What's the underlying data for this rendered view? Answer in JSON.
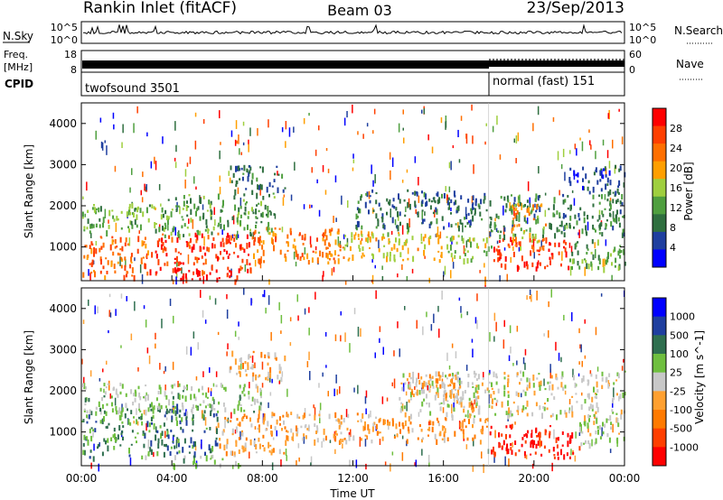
{
  "header": {
    "station": "Rankin Inlet (fitACF)",
    "beam": "Beam 03",
    "date": "23/Sep/2013"
  },
  "strip": {
    "nsky_label": "N.Sky",
    "nsearch_label": "N.Search",
    "nsky_ticks": [
      "10^5",
      "10^0"
    ],
    "nsearch_ticks": [
      "10^5",
      "10^0"
    ],
    "freq_label": "Freq.",
    "freq_unit": "[MHz]",
    "freq_ticks": [
      "18",
      "8"
    ],
    "nave_label": "Nave",
    "nave_ticks": [
      "60",
      "0"
    ],
    "cpid_label": "CPID",
    "cpid_segments": [
      {
        "name": "twofsound 3501",
        "start_hour": 0,
        "end_hour": 18
      },
      {
        "name": "normal (fast) 151",
        "start_hour": 18,
        "end_hour": 24
      }
    ]
  },
  "colors": {
    "power_scale": [
      "#0000ff",
      "#1f3f9f",
      "#2f6f3f",
      "#4f9f3f",
      "#9fcf3f",
      "#ff9f00",
      "#ff6f00",
      "#ff3f00",
      "#ff0000"
    ],
    "velocity_scale": [
      "#0000ff",
      "#1f3f9f",
      "#2f6f4f",
      "#6fbf3f",
      "#c8c8c8",
      "#ffa030",
      "#ff7a00",
      "#ff3f00",
      "#ff0000"
    ]
  },
  "chart_data": [
    {
      "type": "heatmap",
      "panel": "power",
      "xlabel": "",
      "ylabel": "Slant Range [km]",
      "xlim": [
        0,
        24
      ],
      "ylim": [
        180,
        4500
      ],
      "yticks": [
        "1000",
        "2000",
        "3000",
        "4000"
      ],
      "colorbar_label": "Power [dB]",
      "colorbar_ticks": [
        "28",
        "24",
        "20",
        "16",
        "12",
        "8",
        "4"
      ],
      "colorbar_range": [
        0,
        32
      ],
      "regions": [
        {
          "x0": 0.0,
          "x1": 3.0,
          "y0": 300,
          "y1": 1300,
          "level": 24
        },
        {
          "x0": 3.0,
          "x1": 7.5,
          "y0": 400,
          "y1": 1350,
          "level": 28
        },
        {
          "x0": 7.5,
          "x1": 11.5,
          "y0": 600,
          "y1": 1500,
          "level": 22
        },
        {
          "x0": 11.5,
          "x1": 16.0,
          "y0": 700,
          "y1": 1400,
          "level": 18
        },
        {
          "x0": 16.0,
          "x1": 18.2,
          "y0": 700,
          "y1": 1300,
          "level": 16
        },
        {
          "x0": 18.2,
          "x1": 21.5,
          "y0": 500,
          "y1": 1250,
          "level": 28
        },
        {
          "x0": 21.5,
          "x1": 24.0,
          "y0": 500,
          "y1": 1200,
          "level": 12
        },
        {
          "x0": 4.0,
          "x1": 7.0,
          "y0": 200,
          "y1": 500,
          "level": 30
        },
        {
          "x0": 0.0,
          "x1": 3.5,
          "y0": 1400,
          "y1": 2100,
          "level": 14
        },
        {
          "x0": 3.5,
          "x1": 8.5,
          "y0": 1300,
          "y1": 2300,
          "level": 12
        },
        {
          "x0": 12.0,
          "x1": 18.0,
          "y0": 1500,
          "y1": 2400,
          "level": 8
        },
        {
          "x0": 18.0,
          "x1": 24.0,
          "y0": 1300,
          "y1": 2300,
          "level": 10
        },
        {
          "x0": 19.0,
          "x1": 20.5,
          "y0": 1000,
          "y1": 2100,
          "level": 20
        },
        {
          "x0": 6.5,
          "x1": 9.0,
          "y0": 2300,
          "y1": 3000,
          "level": 8
        },
        {
          "x0": 21.5,
          "x1": 24.0,
          "y0": 2300,
          "y1": 3000,
          "level": 6
        }
      ]
    },
    {
      "type": "heatmap",
      "panel": "velocity",
      "xlabel": "Time UT",
      "ylabel": "Slant Range [km]",
      "xlim": [
        0,
        24
      ],
      "ylim": [
        180,
        4500
      ],
      "xticks": [
        "00:00",
        "04:00",
        "08:00",
        "12:00",
        "16:00",
        "20:00",
        "00:00"
      ],
      "yticks": [
        "1000",
        "2000",
        "3000",
        "4000"
      ],
      "colorbar_label": "Velocity [m s^-1]",
      "colorbar_ticks": [
        "1000",
        "500",
        "100",
        "25",
        "-25",
        "-100",
        "-500",
        "-1000"
      ],
      "colorbar_range": [
        -1200,
        1200
      ],
      "regions": [
        {
          "x0": 0.0,
          "x1": 3.0,
          "y0": 400,
          "y1": 1600,
          "level": 400
        },
        {
          "x0": 3.0,
          "x1": 6.0,
          "y0": 500,
          "y1": 1700,
          "level": 600
        },
        {
          "x0": 6.0,
          "x1": 9.0,
          "y0": 500,
          "y1": 1500,
          "level": -300
        },
        {
          "x0": 9.0,
          "x1": 13.0,
          "y0": 800,
          "y1": 1500,
          "level": -200
        },
        {
          "x0": 13.0,
          "x1": 18.0,
          "y0": 800,
          "y1": 1400,
          "level": -400
        },
        {
          "x0": 18.0,
          "x1": 22.0,
          "y0": 400,
          "y1": 1200,
          "level": -1000
        },
        {
          "x0": 22.0,
          "x1": 24.0,
          "y0": 700,
          "y1": 1400,
          "level": 100
        },
        {
          "x0": 4.0,
          "x1": 7.0,
          "y0": 200,
          "y1": 450,
          "level": 200
        },
        {
          "x0": 14.0,
          "x1": 24.0,
          "y0": 1400,
          "y1": 2500,
          "level": 0
        },
        {
          "x0": 14.5,
          "x1": 17.0,
          "y0": 1900,
          "y1": 2500,
          "level": -300
        },
        {
          "x0": 0.0,
          "x1": 8.0,
          "y0": 1500,
          "y1": 2200,
          "level": 150
        },
        {
          "x0": 6.5,
          "x1": 9.0,
          "y0": 2300,
          "y1": 3000,
          "level": -200
        }
      ]
    }
  ]
}
